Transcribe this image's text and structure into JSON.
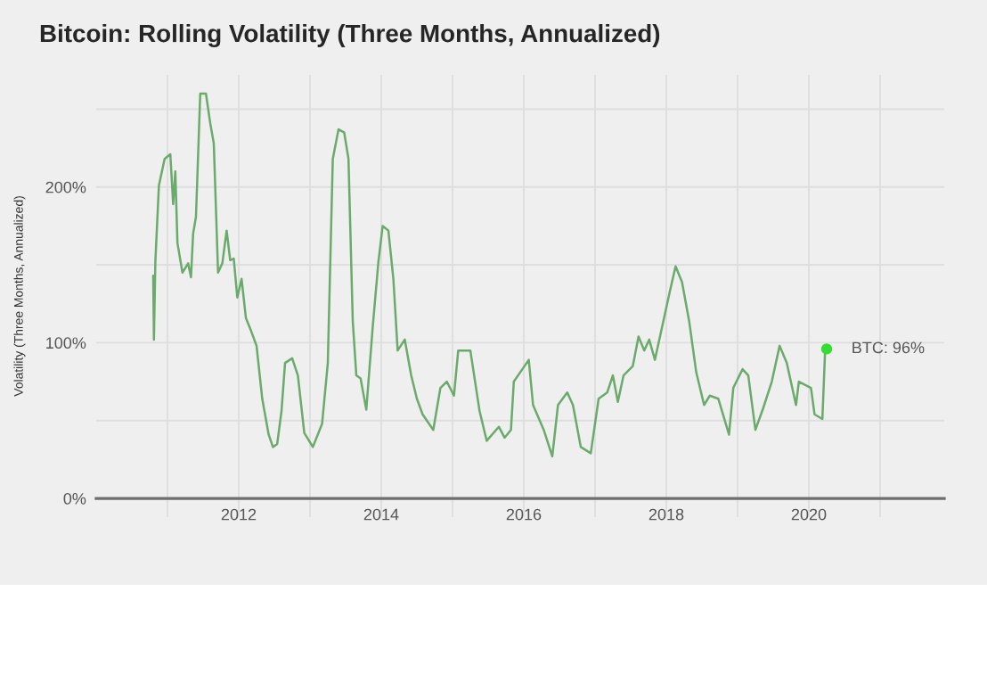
{
  "chart_data": {
    "type": "line",
    "title": "Bitcoin: Rolling Volatility (Three Months, Annualized)",
    "ylabel": "Volatility (Three Months, Annualized)",
    "series": [
      {
        "color": "#6aaa6a",
        "x": [
          2010.8,
          2010.81,
          2010.83,
          2010.88,
          2010.96,
          2011.04,
          2011.08,
          2011.11,
          2011.14,
          2011.21,
          2011.29,
          2011.33,
          2011.36,
          2011.4,
          2011.46,
          2011.54,
          2011.6,
          2011.65,
          2011.71,
          2011.77,
          2011.83,
          2011.88,
          2011.93,
          2011.98,
          2012.04,
          2012.1,
          2012.17,
          2012.25,
          2012.33,
          2012.42,
          2012.48,
          2012.54,
          2012.6,
          2012.65,
          2012.75,
          2012.83,
          2012.92,
          2013.04,
          2013.17,
          2013.25,
          2013.32,
          2013.4,
          2013.48,
          2013.54,
          2013.6,
          2013.65,
          2013.71,
          2013.79,
          2013.88,
          2013.96,
          2014.02,
          2014.1,
          2014.17,
          2014.23,
          2014.33,
          2014.42,
          2014.5,
          2014.58,
          2014.67,
          2014.73,
          2014.83,
          2014.92,
          2015.02,
          2015.08,
          2015.25,
          2015.38,
          2015.48,
          2015.65,
          2015.73,
          2015.82,
          2015.86,
          2015.98,
          2016.07,
          2016.13,
          2016.28,
          2016.4,
          2016.48,
          2016.61,
          2016.69,
          2016.8,
          2016.94,
          2017.05,
          2017.17,
          2017.25,
          2017.32,
          2017.4,
          2017.53,
          2017.61,
          2017.69,
          2017.76,
          2017.84,
          2017.94,
          2018.05,
          2018.13,
          2018.22,
          2018.32,
          2018.42,
          2018.53,
          2018.61,
          2018.73,
          2018.88,
          2018.94,
          2019.07,
          2019.15,
          2019.25,
          2019.36,
          2019.48,
          2019.59,
          2019.69,
          2019.82,
          2019.86,
          2020.03,
          2020.08,
          2020.19,
          2020.23,
          2020.25
        ],
        "values": [
          143,
          102,
          152,
          201,
          218,
          221,
          189,
          210,
          164,
          145,
          151,
          142,
          170,
          181,
          260,
          260,
          241,
          228,
          145,
          151,
          172,
          153,
          154,
          129,
          141,
          116,
          108,
          98,
          64,
          41,
          33,
          35,
          56,
          87,
          90,
          79,
          42,
          33,
          48,
          87,
          218,
          237,
          235,
          218,
          114,
          79,
          77,
          57,
          110,
          152,
          175,
          172,
          141,
          95,
          102,
          79,
          64,
          54,
          48,
          44,
          71,
          75,
          66,
          95,
          95,
          56,
          37,
          46,
          39,
          44,
          75,
          83,
          89,
          60,
          44,
          27,
          60,
          68,
          60,
          33,
          29,
          64,
          68,
          79,
          62,
          79,
          85,
          104,
          95,
          102,
          89,
          110,
          133,
          149,
          139,
          114,
          81,
          60,
          66,
          64,
          41,
          71,
          83,
          79,
          44,
          58,
          75,
          98,
          87,
          60,
          75,
          71,
          54,
          51,
          97,
          96
        ]
      },
      {
        "type": "scatter",
        "color": "#33dd33",
        "x": [
          2020.25
        ],
        "values": [
          96
        ]
      }
    ],
    "annotations": [
      {
        "text": "BTC: 96%",
        "x": 2020.25,
        "y": 96
      }
    ],
    "xlim": [
      2010.0,
      2021.9
    ],
    "ylim": [
      -12,
      272
    ],
    "xticks": [
      {
        "value": 2011,
        "label": null
      },
      2012,
      {
        "value": 2013,
        "label": null
      },
      2014,
      {
        "value": 2015,
        "label": null
      },
      2016,
      {
        "value": 2017,
        "label": null
      },
      2018,
      {
        "value": 2019,
        "label": null
      },
      2020,
      {
        "value": 2021,
        "label": null
      }
    ],
    "yticks": [
      {
        "value": 0,
        "label": "0%"
      },
      {
        "value": 50,
        "label": null
      },
      {
        "value": 100,
        "label": "100%"
      },
      {
        "value": 150,
        "label": null
      },
      {
        "value": 200,
        "label": "200%"
      },
      {
        "value": 250,
        "label": null
      }
    ],
    "grid": true,
    "legend": false,
    "line_style": "solid"
  }
}
